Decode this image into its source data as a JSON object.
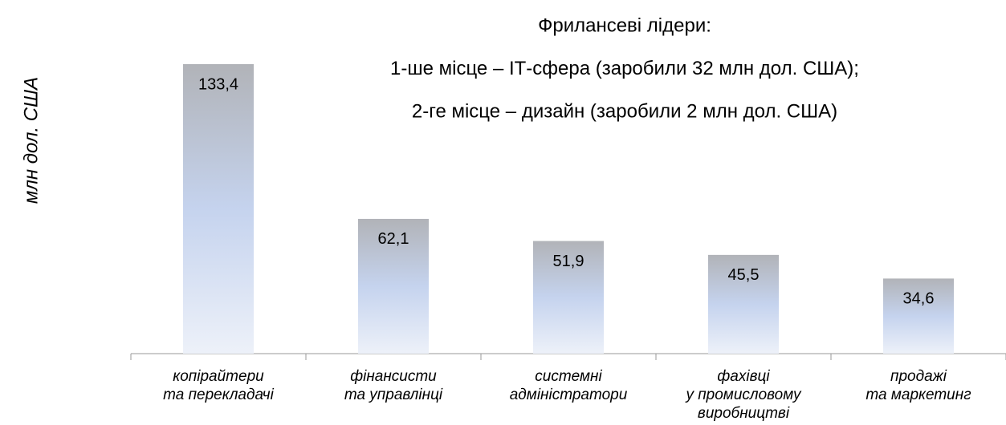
{
  "chart_data": {
    "type": "bar",
    "annotation": [
      "Фрилансеві лідери:",
      "1-ше місце – ІТ-сфера (заробили 32 млн дол. США);",
      "2-ге місце – дизайн (заробили 2 млн дол. США)"
    ],
    "ylabel": "млн дол. США",
    "categories": [
      [
        "копірайтери",
        "та перекладачі"
      ],
      [
        "фінансисти",
        "та управлінці"
      ],
      [
        "системні",
        "адміністратори"
      ],
      [
        "фахівці",
        "у промисловому",
        "виробництві"
      ],
      [
        "продажі",
        "та маркетинг"
      ]
    ],
    "values": [
      133.4,
      62.1,
      51.9,
      45.5,
      34.6
    ],
    "value_labels": [
      "133,4",
      "62,1",
      "51,9",
      "45,5",
      "34,6"
    ],
    "color": "#c5d3ee"
  }
}
